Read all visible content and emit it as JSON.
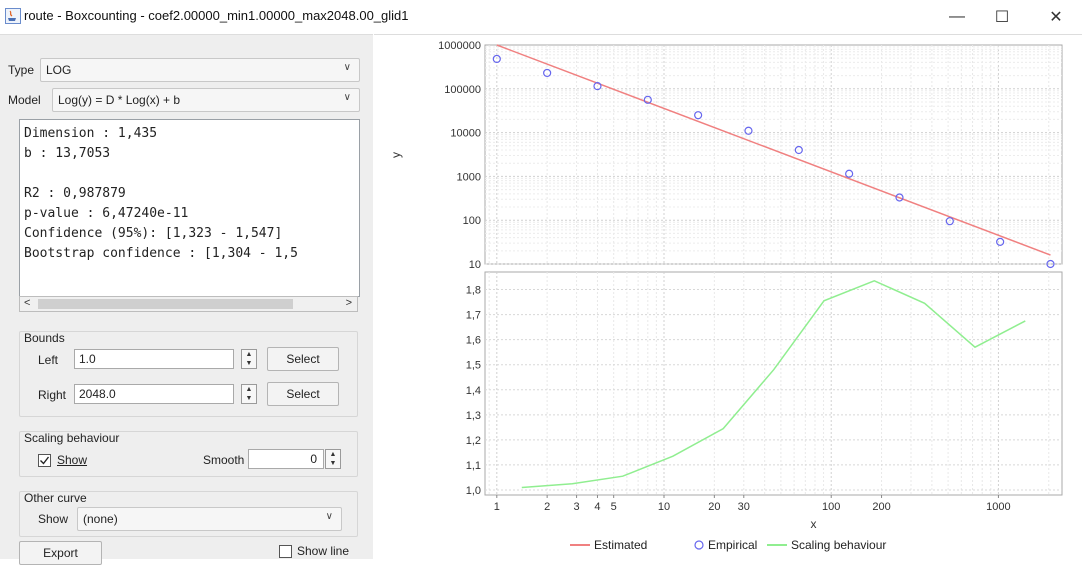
{
  "window": {
    "title": "route - Boxcounting - coef2.00000_min1.00000_max2048.00_glid1",
    "minimize_glyph": "—",
    "maximize_glyph": "☐",
    "close_glyph": "✕"
  },
  "left_panel": {
    "type_label": "Type",
    "type_value": "LOG",
    "model_label": "Model",
    "model_value": "Log(y) = D * Log(x) + b",
    "results": [
      "Dimension : 1,435",
      "b : 13,7053",
      "",
      "R2 : 0,987879",
      "p-value : 6,47240e-11",
      "Confidence (95%): [1,323 - 1,547]",
      "Bootstrap confidence : [1,304 - 1,5"
    ],
    "bounds": {
      "title": "Bounds",
      "left_label": "Left",
      "left_value": "1.0",
      "right_label": "Right",
      "right_value": "2048.0",
      "select_label": "Select"
    },
    "scaling": {
      "title": "Scaling behaviour",
      "show_label": "Show",
      "show_checked": true,
      "smooth_label": "Smooth",
      "smooth_value": "0"
    },
    "other_curve": {
      "title": "Other curve",
      "show_label": "Show",
      "show_value": "(none)"
    },
    "export_label": "Export",
    "show_line_label": "Show line",
    "show_line_checked": false
  },
  "chart_data": [
    {
      "type": "scatter",
      "name": "top",
      "ylabel": "y",
      "xscale": "log",
      "yscale": "log",
      "xlim": [
        0.85,
        2400
      ],
      "ylim": [
        10,
        1000000
      ],
      "yticks": [
        "1000000",
        "100000",
        "10000",
        "1000",
        "100",
        "10"
      ],
      "series": [
        {
          "name": "Estimated",
          "type": "line",
          "color": "#f08080",
          "x": [
            1,
            2048
          ],
          "y": [
            1000000,
            16
          ]
        },
        {
          "name": "Empirical",
          "type": "scatter",
          "color": "#6666ee",
          "x": [
            1,
            2,
            4,
            8,
            16,
            32,
            64,
            128,
            256,
            512,
            1024,
            2048
          ],
          "y": [
            480000,
            230000,
            115000,
            56000,
            25000,
            11000,
            4000,
            1150,
            330,
            95,
            32,
            10
          ]
        }
      ]
    },
    {
      "type": "line",
      "name": "bottom",
      "xlabel": "x",
      "xscale": "log",
      "xlim": [
        0.85,
        2400
      ],
      "ylim": [
        0.98,
        1.87
      ],
      "xticks": [
        "1",
        "2",
        "3",
        "4",
        "5",
        "10",
        "20",
        "30",
        "100",
        "200",
        "1000"
      ],
      "yticks": [
        "1,8",
        "1,7",
        "1,6",
        "1,5",
        "1,4",
        "1,3",
        "1,2",
        "1,1",
        "1,0"
      ],
      "series": [
        {
          "name": "Scaling behaviour",
          "color": "#90ee90",
          "x": [
            1.41,
            2.83,
            5.66,
            11.3,
            22.6,
            45.3,
            90.5,
            181,
            362,
            724,
            1448
          ],
          "y": [
            1.01,
            1.025,
            1.055,
            1.135,
            1.245,
            1.48,
            1.755,
            1.835,
            1.745,
            1.57,
            1.675
          ]
        }
      ]
    }
  ],
  "legend": [
    "Estimated",
    "Empirical",
    "Scaling behaviour"
  ],
  "colors": {
    "estimated": "#f08080",
    "empirical": "#6666ee",
    "scaling": "#90ee90"
  }
}
